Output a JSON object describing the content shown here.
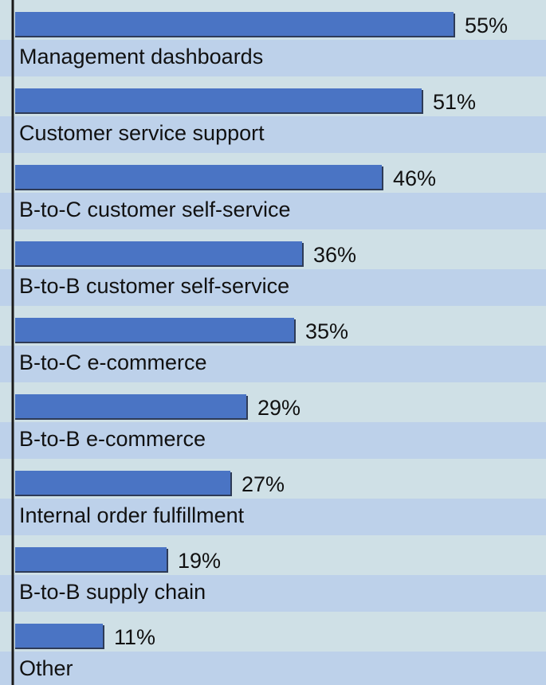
{
  "chart_data": {
    "type": "bar",
    "orientation": "horizontal",
    "categories": [
      "Management dashboards",
      "Customer service support",
      "B-to-C customer self-service",
      "B-to-B customer self-service",
      "B-to-C e-commerce",
      "B-to-B e-commerce",
      "Internal order fulfillment",
      "B-to-B supply chain",
      "Other"
    ],
    "values": [
      55,
      51,
      46,
      36,
      35,
      29,
      27,
      19,
      11
    ],
    "value_labels": [
      "55%",
      "51%",
      "46%",
      "36%",
      "35%",
      "29%",
      "27%",
      "19%",
      "11%"
    ],
    "xlim": [
      0,
      55
    ],
    "grid": false,
    "legend": "none"
  },
  "colors": {
    "bar": "#4a74c4",
    "bar_shadow": "#2e3b57",
    "band_light": "#cfe0e6",
    "band_dark": "#bdd1ea",
    "axis": "#1a1a1a",
    "text": "#111111"
  }
}
